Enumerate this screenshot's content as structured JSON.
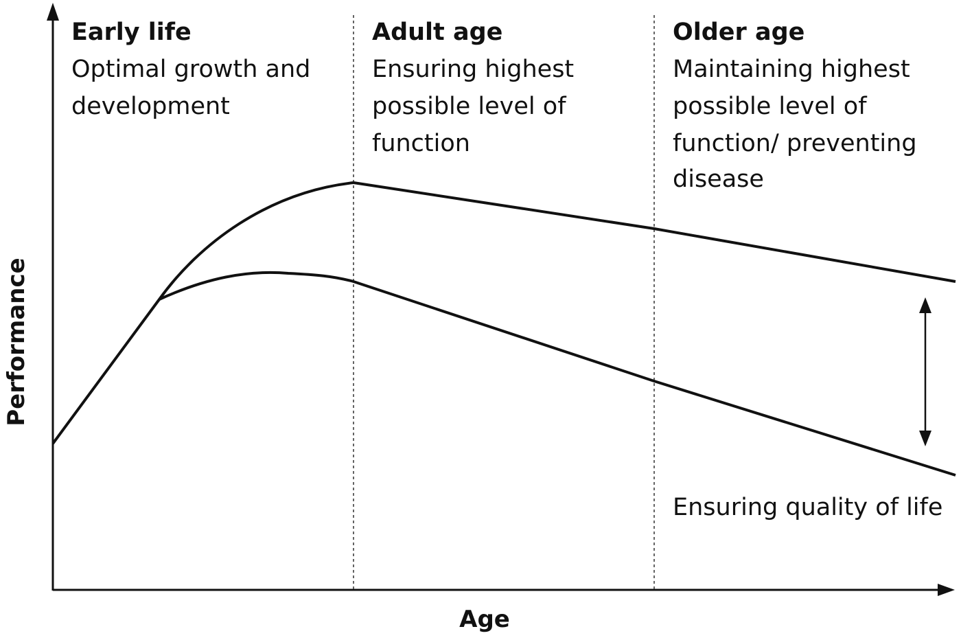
{
  "diagram": {
    "axes": {
      "x_label": "Age",
      "y_label": "Performance"
    },
    "stages": [
      {
        "heading": "Early life",
        "description_lines": [
          "Optimal growth and",
          "development"
        ]
      },
      {
        "heading": "Adult age",
        "description_lines": [
          "Ensuring highest",
          "possible level of",
          "function"
        ]
      },
      {
        "heading": "Older age",
        "description_lines": [
          "Maintaining highest",
          "possible level of",
          "function/ preventing",
          "disease"
        ]
      }
    ],
    "gap_annotation": "Ensuring quality of life",
    "colors": {
      "line": "#111111",
      "background": "#ffffff"
    }
  }
}
